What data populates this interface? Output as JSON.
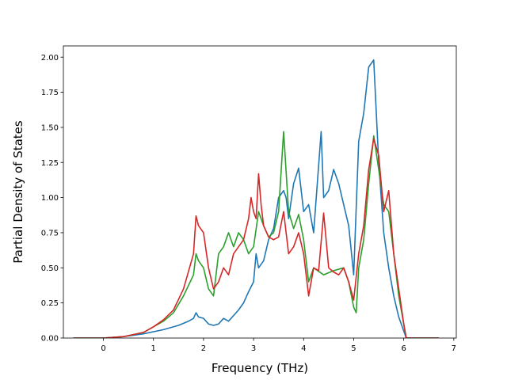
{
  "chart_data": {
    "type": "line",
    "xlabel": "Frequency (THz)",
    "ylabel": "Partial Density of States",
    "xlim": [
      -0.8,
      7.05
    ],
    "ylim": [
      0.0,
      2.08
    ],
    "xticks": [
      0,
      1,
      2,
      3,
      4,
      5,
      6,
      7
    ],
    "xtick_labels": [
      "0",
      "1",
      "2",
      "3",
      "4",
      "5",
      "6",
      "7"
    ],
    "yticks": [
      0.0,
      0.25,
      0.5,
      0.75,
      1.0,
      1.25,
      1.5,
      1.75,
      2.0
    ],
    "ytick_labels": [
      "0.00",
      "0.25",
      "0.50",
      "0.75",
      "1.00",
      "1.25",
      "1.50",
      "1.75",
      "2.00"
    ],
    "grid": false,
    "series": [
      {
        "color": "#1f77b4",
        "points": [
          [
            -0.6,
            0
          ],
          [
            0,
            0
          ],
          [
            0.4,
            0.01
          ],
          [
            0.8,
            0.03
          ],
          [
            1.2,
            0.06
          ],
          [
            1.5,
            0.09
          ],
          [
            1.7,
            0.12
          ],
          [
            1.8,
            0.14
          ],
          [
            1.85,
            0.18
          ],
          [
            1.9,
            0.15
          ],
          [
            2.0,
            0.14
          ],
          [
            2.1,
            0.1
          ],
          [
            2.2,
            0.09
          ],
          [
            2.3,
            0.1
          ],
          [
            2.4,
            0.14
          ],
          [
            2.5,
            0.12
          ],
          [
            2.6,
            0.16
          ],
          [
            2.7,
            0.2
          ],
          [
            2.8,
            0.25
          ],
          [
            2.9,
            0.33
          ],
          [
            3.0,
            0.4
          ],
          [
            3.05,
            0.6
          ],
          [
            3.1,
            0.5
          ],
          [
            3.2,
            0.55
          ],
          [
            3.3,
            0.7
          ],
          [
            3.4,
            0.78
          ],
          [
            3.5,
            1.0
          ],
          [
            3.6,
            1.05
          ],
          [
            3.65,
            1.0
          ],
          [
            3.7,
            0.85
          ],
          [
            3.8,
            1.1
          ],
          [
            3.9,
            1.21
          ],
          [
            4.0,
            0.9
          ],
          [
            4.1,
            0.95
          ],
          [
            4.2,
            0.75
          ],
          [
            4.35,
            1.47
          ],
          [
            4.4,
            1.0
          ],
          [
            4.5,
            1.05
          ],
          [
            4.6,
            1.2
          ],
          [
            4.7,
            1.1
          ],
          [
            4.8,
            0.95
          ],
          [
            4.9,
            0.8
          ],
          [
            5.0,
            0.45
          ],
          [
            5.1,
            1.4
          ],
          [
            5.2,
            1.6
          ],
          [
            5.3,
            1.93
          ],
          [
            5.4,
            1.98
          ],
          [
            5.5,
            1.25
          ],
          [
            5.6,
            0.75
          ],
          [
            5.7,
            0.5
          ],
          [
            5.8,
            0.3
          ],
          [
            5.9,
            0.15
          ],
          [
            6.0,
            0.05
          ],
          [
            6.05,
            0
          ],
          [
            6.7,
            0
          ]
        ]
      },
      {
        "color": "#2ca02c",
        "points": [
          [
            -0.6,
            0
          ],
          [
            0,
            0
          ],
          [
            0.4,
            0.01
          ],
          [
            0.8,
            0.04
          ],
          [
            1.0,
            0.08
          ],
          [
            1.2,
            0.12
          ],
          [
            1.4,
            0.18
          ],
          [
            1.6,
            0.3
          ],
          [
            1.8,
            0.45
          ],
          [
            1.85,
            0.6
          ],
          [
            1.9,
            0.55
          ],
          [
            2.0,
            0.5
          ],
          [
            2.1,
            0.35
          ],
          [
            2.2,
            0.3
          ],
          [
            2.3,
            0.6
          ],
          [
            2.4,
            0.65
          ],
          [
            2.5,
            0.75
          ],
          [
            2.6,
            0.65
          ],
          [
            2.7,
            0.75
          ],
          [
            2.8,
            0.7
          ],
          [
            2.9,
            0.6
          ],
          [
            3.0,
            0.65
          ],
          [
            3.1,
            0.9
          ],
          [
            3.2,
            0.8
          ],
          [
            3.3,
            0.72
          ],
          [
            3.4,
            0.75
          ],
          [
            3.5,
            0.9
          ],
          [
            3.6,
            1.47
          ],
          [
            3.7,
            0.9
          ],
          [
            3.8,
            0.78
          ],
          [
            3.9,
            0.88
          ],
          [
            4.0,
            0.7
          ],
          [
            4.1,
            0.4
          ],
          [
            4.2,
            0.5
          ],
          [
            4.4,
            0.45
          ],
          [
            4.6,
            0.48
          ],
          [
            4.8,
            0.5
          ],
          [
            4.9,
            0.4
          ],
          [
            5.0,
            0.22
          ],
          [
            5.05,
            0.18
          ],
          [
            5.1,
            0.5
          ],
          [
            5.2,
            0.7
          ],
          [
            5.3,
            1.1
          ],
          [
            5.4,
            1.44
          ],
          [
            5.5,
            1.2
          ],
          [
            5.6,
            0.95
          ],
          [
            5.7,
            0.9
          ],
          [
            5.8,
            0.6
          ],
          [
            5.9,
            0.3
          ],
          [
            6.0,
            0.1
          ],
          [
            6.05,
            0
          ],
          [
            6.7,
            0
          ]
        ]
      },
      {
        "color": "#d62728",
        "points": [
          [
            -0.6,
            0
          ],
          [
            0,
            0
          ],
          [
            0.4,
            0.01
          ],
          [
            0.8,
            0.04
          ],
          [
            1.0,
            0.08
          ],
          [
            1.2,
            0.13
          ],
          [
            1.4,
            0.2
          ],
          [
            1.6,
            0.35
          ],
          [
            1.8,
            0.6
          ],
          [
            1.85,
            0.87
          ],
          [
            1.9,
            0.8
          ],
          [
            2.0,
            0.75
          ],
          [
            2.1,
            0.5
          ],
          [
            2.2,
            0.35
          ],
          [
            2.3,
            0.4
          ],
          [
            2.4,
            0.5
          ],
          [
            2.5,
            0.45
          ],
          [
            2.6,
            0.6
          ],
          [
            2.7,
            0.65
          ],
          [
            2.8,
            0.7
          ],
          [
            2.9,
            0.85
          ],
          [
            2.95,
            1.0
          ],
          [
            3.0,
            0.9
          ],
          [
            3.05,
            0.85
          ],
          [
            3.1,
            1.17
          ],
          [
            3.15,
            0.95
          ],
          [
            3.2,
            0.8
          ],
          [
            3.3,
            0.72
          ],
          [
            3.4,
            0.7
          ],
          [
            3.5,
            0.72
          ],
          [
            3.6,
            0.9
          ],
          [
            3.7,
            0.6
          ],
          [
            3.8,
            0.65
          ],
          [
            3.9,
            0.75
          ],
          [
            4.0,
            0.6
          ],
          [
            4.1,
            0.3
          ],
          [
            4.2,
            0.5
          ],
          [
            4.3,
            0.48
          ],
          [
            4.4,
            0.89
          ],
          [
            4.5,
            0.5
          ],
          [
            4.6,
            0.47
          ],
          [
            4.7,
            0.45
          ],
          [
            4.8,
            0.5
          ],
          [
            4.9,
            0.4
          ],
          [
            5.0,
            0.27
          ],
          [
            5.1,
            0.6
          ],
          [
            5.2,
            0.8
          ],
          [
            5.3,
            1.2
          ],
          [
            5.4,
            1.42
          ],
          [
            5.5,
            1.3
          ],
          [
            5.6,
            0.9
          ],
          [
            5.7,
            1.05
          ],
          [
            5.8,
            0.6
          ],
          [
            5.9,
            0.35
          ],
          [
            6.0,
            0.1
          ],
          [
            6.05,
            0
          ],
          [
            6.7,
            0
          ]
        ]
      }
    ]
  }
}
